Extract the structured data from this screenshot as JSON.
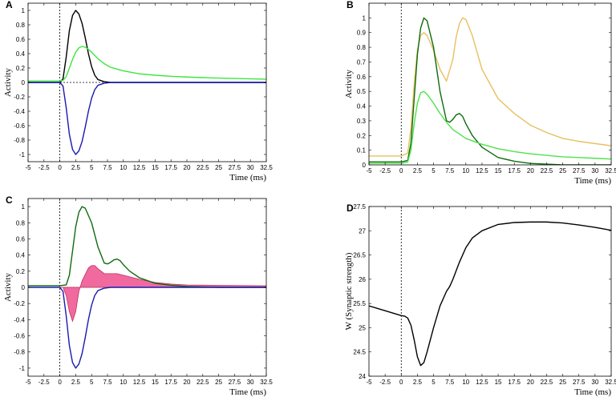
{
  "chart_data": [
    {
      "panel_label": "A",
      "type": "line",
      "xlabel": "Time (ms)",
      "ylabel": "Activity",
      "xlim": [
        -5,
        32.5
      ],
      "ylim": [
        -1.1,
        1.1
      ],
      "xticks": [
        "-5",
        "-2.5",
        "0",
        "2.5",
        "5",
        "7.5",
        "10",
        "12.5",
        "15",
        "17.5",
        "20",
        "22.5",
        "25",
        "27.5",
        "30",
        "32.5"
      ],
      "yticks": [
        "1",
        "0.8",
        "0.6",
        "0.4",
        "0.2",
        "0",
        "-0.2",
        "-0.4",
        "-0.6",
        "-0.8",
        "-1"
      ],
      "ytick_values": [
        1,
        0.8,
        0.6,
        0.4,
        0.2,
        0,
        -0.2,
        -0.4,
        -0.6,
        -0.8,
        -1
      ],
      "vline_x": 0,
      "hline_y": 0,
      "series": [
        {
          "color": "#000000",
          "x": [
            -5,
            0,
            0.5,
            1,
            1.5,
            2,
            2.5,
            3,
            3.5,
            4,
            4.5,
            5,
            5.5,
            6,
            7,
            8,
            10,
            32.5
          ],
          "y": [
            0,
            0,
            0.05,
            0.35,
            0.72,
            0.93,
            1.0,
            0.95,
            0.82,
            0.62,
            0.4,
            0.22,
            0.1,
            0.04,
            0.01,
            0,
            0,
            0
          ]
        },
        {
          "color": "#3ee63e",
          "x": [
            -5,
            0,
            0.5,
            1,
            1.5,
            2,
            2.5,
            3,
            3.5,
            4,
            4.5,
            5,
            6,
            7,
            8,
            10,
            12.5,
            15,
            17.5,
            20,
            25,
            32.5
          ],
          "y": [
            0.02,
            0.02,
            0.03,
            0.08,
            0.2,
            0.32,
            0.42,
            0.48,
            0.5,
            0.49,
            0.46,
            0.42,
            0.33,
            0.26,
            0.21,
            0.16,
            0.12,
            0.1,
            0.085,
            0.075,
            0.06,
            0.045
          ]
        },
        {
          "color": "#1a1ab0",
          "x": [
            -5,
            0,
            0.5,
            1,
            1.5,
            2,
            2.5,
            3,
            3.5,
            4,
            4.5,
            5,
            5.5,
            6,
            7,
            8,
            10,
            32.5
          ],
          "y": [
            0,
            0,
            -0.05,
            -0.35,
            -0.72,
            -0.93,
            -1.0,
            -0.95,
            -0.82,
            -0.62,
            -0.4,
            -0.22,
            -0.1,
            -0.04,
            -0.01,
            0,
            0,
            0
          ]
        }
      ]
    },
    {
      "panel_label": "B",
      "type": "line",
      "xlabel": "Time (ms)",
      "ylabel": "Activity",
      "xlim": [
        -5,
        32.5
      ],
      "ylim": [
        0,
        1.1
      ],
      "xticks": [
        "-5",
        "-2.5",
        "0",
        "2.5",
        "5",
        "7.5",
        "10",
        "12.5",
        "15",
        "17.5",
        "20",
        "22.5",
        "25",
        "27.5",
        "30",
        "32.5"
      ],
      "yticks": [
        "1",
        "0.9",
        "0.8",
        "0.7",
        "0.6",
        "0.5",
        "0.4",
        "0.3",
        "0.2",
        "0.1",
        "0"
      ],
      "ytick_values": [
        1,
        0.9,
        0.8,
        0.7,
        0.6,
        0.5,
        0.4,
        0.3,
        0.2,
        0.1,
        0
      ],
      "vline_x": 0,
      "series": [
        {
          "color": "#e8c060",
          "x": [
            -5,
            0,
            1,
            1.5,
            2,
            2.5,
            3,
            3.5,
            4,
            5,
            6,
            7,
            8,
            8.5,
            9,
            9.5,
            10,
            11,
            12.5,
            15,
            17.5,
            20,
            22.5,
            25,
            27.5,
            30,
            32.5
          ],
          "y": [
            0.06,
            0.06,
            0.08,
            0.25,
            0.55,
            0.78,
            0.88,
            0.9,
            0.88,
            0.78,
            0.65,
            0.57,
            0.72,
            0.87,
            0.96,
            1.0,
            0.99,
            0.88,
            0.65,
            0.45,
            0.35,
            0.27,
            0.22,
            0.18,
            0.16,
            0.145,
            0.13
          ]
        },
        {
          "color": "#0f6b0f",
          "x": [
            -5,
            0,
            1,
            1.5,
            2,
            2.5,
            3,
            3.5,
            4,
            5,
            6,
            7,
            7.5,
            8,
            8.5,
            9,
            9.5,
            10,
            11,
            12.5,
            15,
            17.5,
            20,
            25,
            32.5
          ],
          "y": [
            0.02,
            0.02,
            0.03,
            0.15,
            0.45,
            0.75,
            0.93,
            1.0,
            0.98,
            0.8,
            0.5,
            0.3,
            0.29,
            0.31,
            0.34,
            0.35,
            0.33,
            0.28,
            0.2,
            0.12,
            0.05,
            0.025,
            0.01,
            0,
            0
          ]
        },
        {
          "color": "#4de24d",
          "x": [
            -5,
            0,
            1,
            1.5,
            2,
            2.5,
            3,
            3.5,
            4,
            5,
            6,
            7,
            8,
            10,
            12.5,
            15,
            17.5,
            20,
            22.5,
            25,
            27.5,
            30,
            32.5
          ],
          "y": [
            0.01,
            0.01,
            0.02,
            0.1,
            0.28,
            0.42,
            0.49,
            0.5,
            0.48,
            0.42,
            0.35,
            0.29,
            0.24,
            0.18,
            0.14,
            0.11,
            0.09,
            0.075,
            0.065,
            0.055,
            0.05,
            0.045,
            0.04
          ]
        }
      ]
    },
    {
      "panel_label": "C",
      "type": "area",
      "xlabel": "Time (ms)",
      "ylabel": "Activity",
      "xlim": [
        -5,
        32.5
      ],
      "ylim": [
        -1.1,
        1.1
      ],
      "xticks": [
        "-5",
        "-2.5",
        "0",
        "2.5",
        "5",
        "7.5",
        "10",
        "12.5",
        "15",
        "17.5",
        "20",
        "22.5",
        "25",
        "27.5",
        "30",
        "32.5"
      ],
      "yticks": [
        "1",
        "0.8",
        "0.6",
        "0.4",
        "0.2",
        "0",
        "-0.2",
        "-0.4",
        "-0.6",
        "-0.8",
        "-1"
      ],
      "ytick_values": [
        1,
        0.8,
        0.6,
        0.4,
        0.2,
        0,
        -0.2,
        -0.4,
        -0.6,
        -0.8,
        -1
      ],
      "vline_x": 0,
      "hline_y": 0,
      "fill": {
        "color": "#f06aa0",
        "x": [
          -5,
          0,
          0.5,
          1,
          1.5,
          2,
          2.5,
          3,
          3.5,
          4,
          4.5,
          5,
          5.5,
          6,
          7,
          8,
          9,
          10,
          12.5,
          15,
          17.5,
          20,
          25,
          32.5
        ],
        "y": [
          0,
          0,
          0,
          -0.1,
          -0.3,
          -0.42,
          -0.3,
          -0.05,
          0.08,
          0.16,
          0.24,
          0.27,
          0.27,
          0.23,
          0.17,
          0.17,
          0.17,
          0.15,
          0.1,
          0.06,
          0.04,
          0.03,
          0.025,
          0.02
        ]
      },
      "series": [
        {
          "color": "#0f6b0f",
          "x": [
            -5,
            0,
            1,
            1.5,
            2,
            2.5,
            3,
            3.5,
            4,
            5,
            6,
            7,
            7.5,
            8,
            8.5,
            9,
            9.5,
            10,
            11,
            12.5,
            15,
            17.5,
            20,
            25,
            32.5
          ],
          "y": [
            0.02,
            0.02,
            0.03,
            0.15,
            0.45,
            0.75,
            0.93,
            1.0,
            0.98,
            0.8,
            0.5,
            0.3,
            0.29,
            0.31,
            0.34,
            0.35,
            0.33,
            0.28,
            0.2,
            0.12,
            0.05,
            0.025,
            0.01,
            0,
            0
          ]
        },
        {
          "color": "#1a1ab0",
          "x": [
            -5,
            0,
            0.5,
            1,
            1.5,
            2,
            2.5,
            3,
            3.5,
            4,
            4.5,
            5,
            5.5,
            6,
            7,
            8,
            10,
            32.5
          ],
          "y": [
            0,
            0,
            -0.05,
            -0.35,
            -0.72,
            -0.93,
            -1.0,
            -0.95,
            -0.82,
            -0.62,
            -0.4,
            -0.22,
            -0.1,
            -0.04,
            -0.01,
            0,
            0,
            0
          ]
        }
      ]
    },
    {
      "panel_label": "D",
      "type": "line",
      "xlabel": "Time (ms)",
      "ylabel": "W (Synaptic strength)",
      "xlim": [
        -5,
        32.5
      ],
      "ylim": [
        24,
        27.5
      ],
      "xticks": [
        "-5",
        "-2.5",
        "0",
        "2.5",
        "5",
        "7.5",
        "10",
        "12.5",
        "15",
        "17.5",
        "20",
        "22.5",
        "25",
        "27.5",
        "30",
        "32.5"
      ],
      "yticks": [
        "27.5",
        "27",
        "26.5",
        "26",
        "25.5",
        "25",
        "24.5",
        "24"
      ],
      "ytick_values": [
        27.5,
        27,
        26.5,
        26,
        25.5,
        25,
        24.5,
        24
      ],
      "vline_x": 0,
      "series": [
        {
          "color": "#000000",
          "x": [
            -5,
            -2.5,
            0,
            0.5,
            1,
            1.5,
            2,
            2.5,
            3,
            3.5,
            4,
            5,
            6,
            7,
            7.5,
            8,
            9,
            10,
            11,
            12.5,
            15,
            17.5,
            20,
            22.5,
            25,
            27.5,
            30,
            32.5
          ],
          "y": [
            25.45,
            25.35,
            25.25,
            25.24,
            25.2,
            25.05,
            24.75,
            24.4,
            24.22,
            24.28,
            24.5,
            25.0,
            25.45,
            25.75,
            25.85,
            26.0,
            26.35,
            26.65,
            26.85,
            27.0,
            27.13,
            27.17,
            27.18,
            27.18,
            27.16,
            27.12,
            27.07,
            27.01
          ]
        }
      ]
    }
  ]
}
